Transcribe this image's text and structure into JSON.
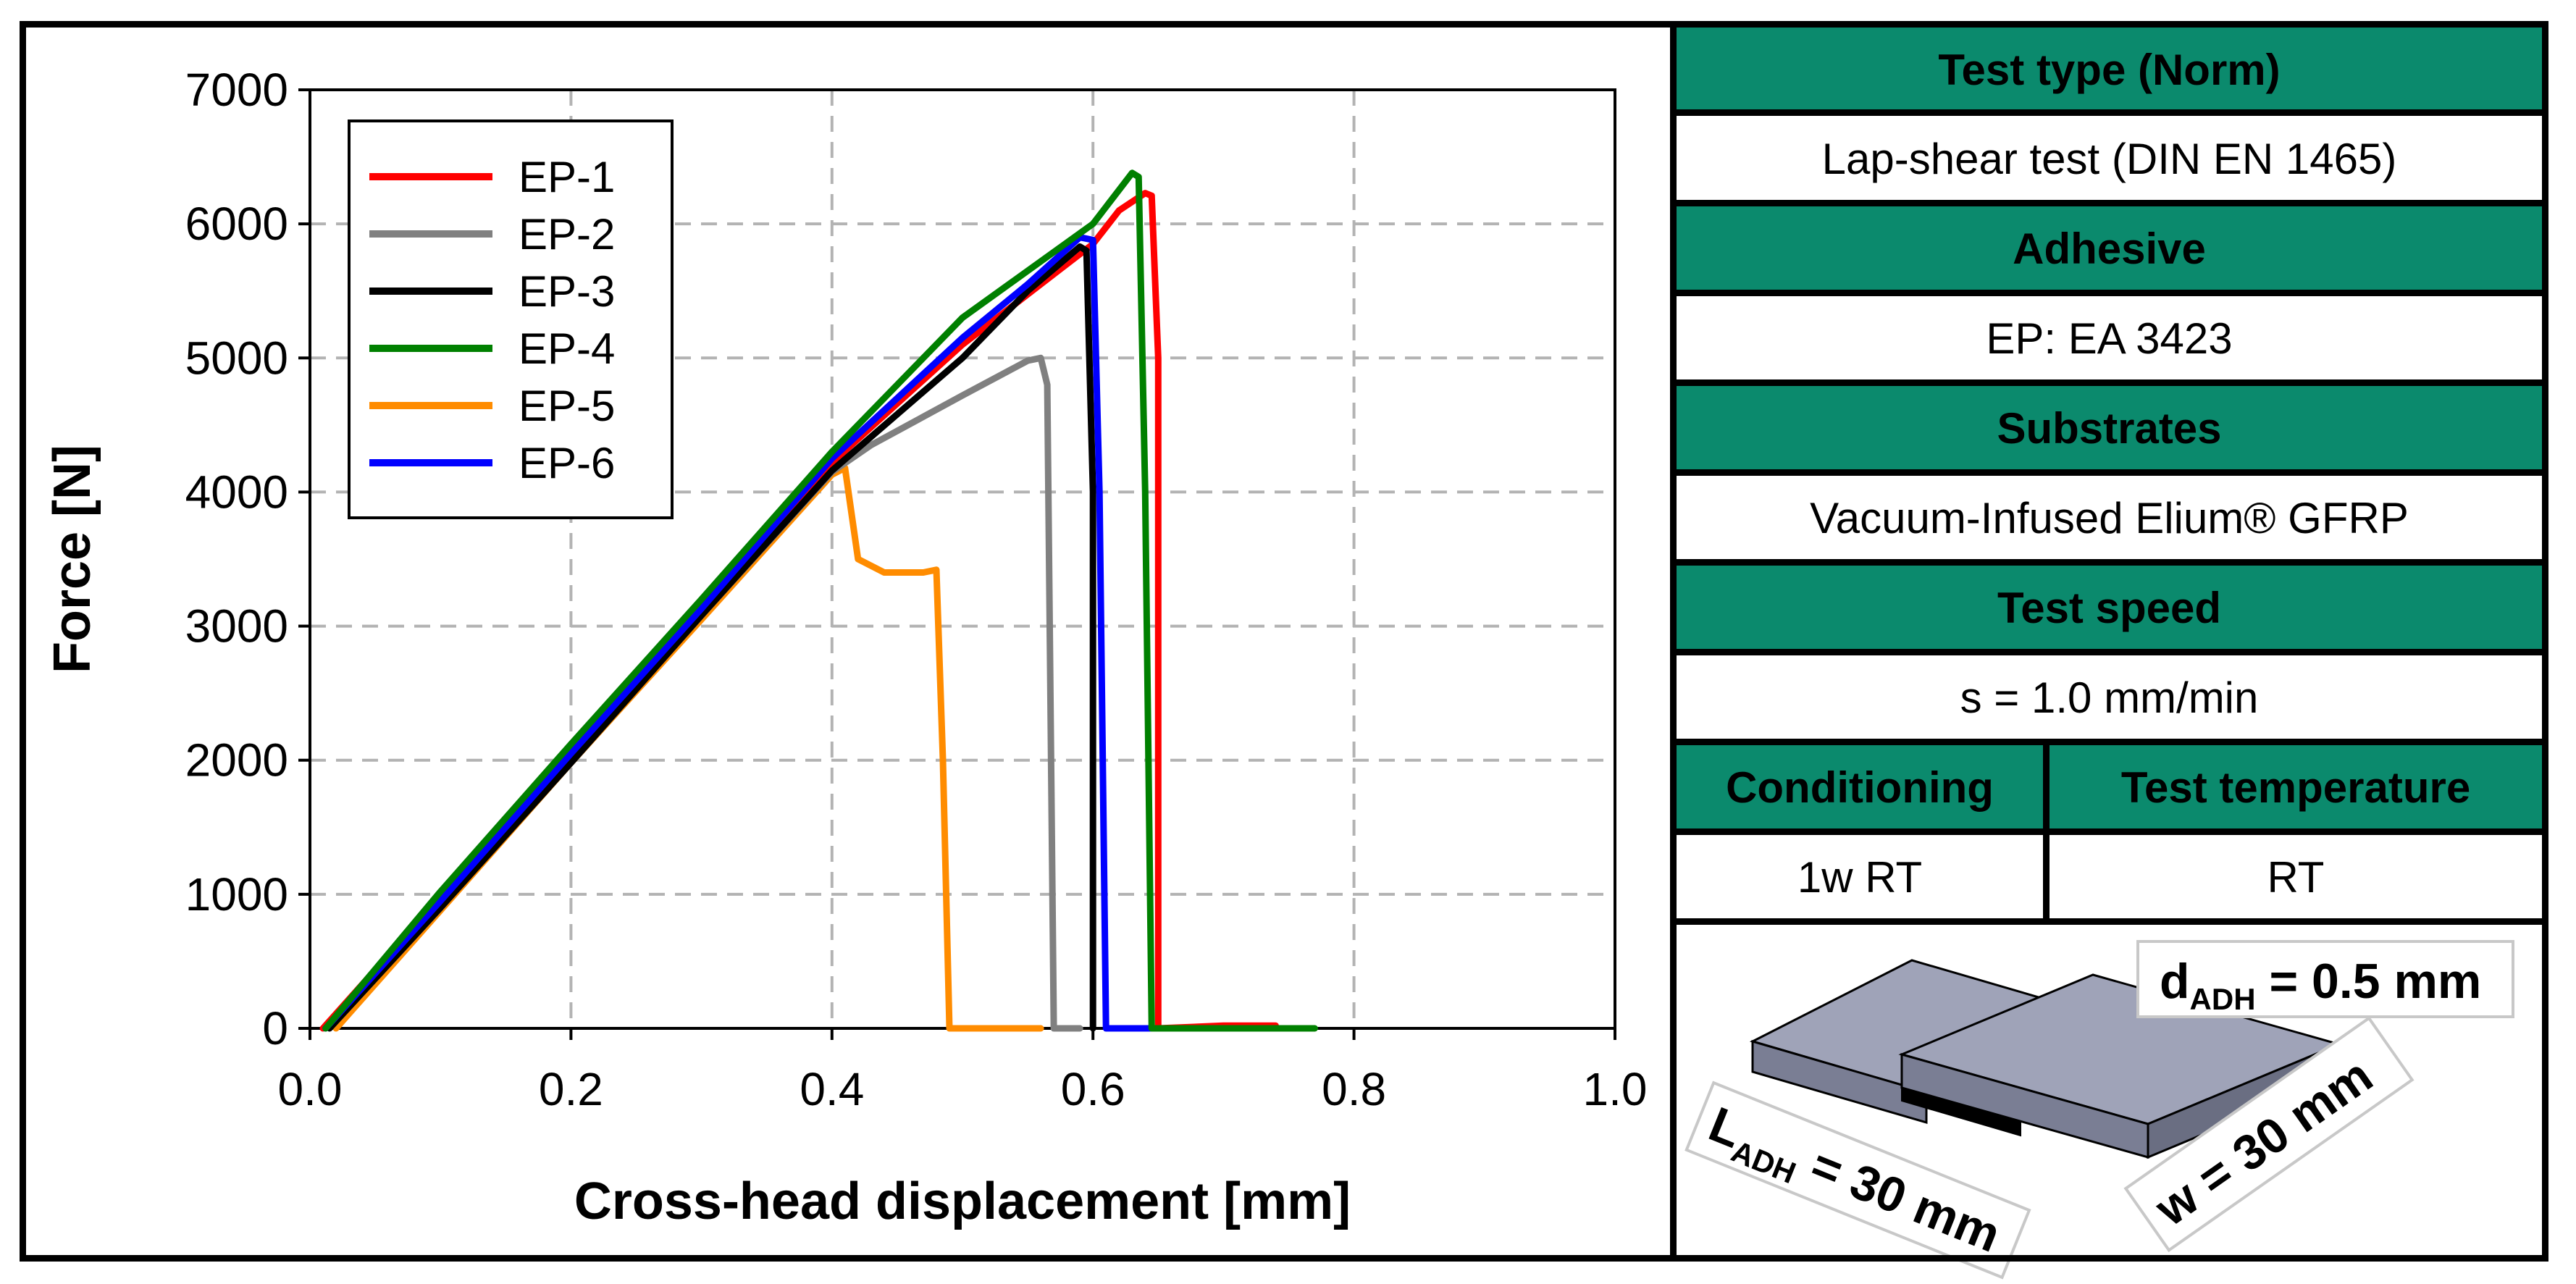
{
  "chart_data": {
    "type": "line",
    "xlabel": "Cross-head displacement [mm]",
    "ylabel": "Force [N]",
    "xlim": [
      0.0,
      1.0
    ],
    "ylim": [
      0,
      7000
    ],
    "x_ticks": [
      "0.0",
      "0.2",
      "0.4",
      "0.6",
      "0.8",
      "1.0"
    ],
    "y_ticks": [
      "0",
      "1000",
      "2000",
      "3000",
      "4000",
      "5000",
      "6000",
      "7000"
    ],
    "grid": true,
    "legend_position": "top-left",
    "series": [
      {
        "name": "EP-1",
        "color": "#ff0000",
        "x": [
          0.01,
          0.1,
          0.2,
          0.3,
          0.4,
          0.5,
          0.6,
          0.62,
          0.64,
          0.645,
          0.65,
          0.65,
          0.7,
          0.74
        ],
        "y": [
          0,
          980,
          2050,
          3120,
          4220,
          5100,
          5850,
          6100,
          6230,
          6210,
          5000,
          0,
          20,
          20
        ]
      },
      {
        "name": "EP-2",
        "color": "#808080",
        "x": [
          0.015,
          0.1,
          0.2,
          0.3,
          0.4,
          0.43,
          0.5,
          0.55,
          0.56,
          0.565,
          0.57,
          0.59
        ],
        "y": [
          0,
          900,
          2000,
          3080,
          4150,
          4350,
          4720,
          4980,
          5000,
          4800,
          0,
          0
        ]
      },
      {
        "name": "EP-3",
        "color": "#000000",
        "x": [
          0.015,
          0.1,
          0.2,
          0.3,
          0.4,
          0.5,
          0.55,
          0.59,
          0.595,
          0.6,
          0.6
        ],
        "y": [
          0,
          900,
          1980,
          3080,
          4160,
          5000,
          5500,
          5830,
          5800,
          4000,
          0
        ]
      },
      {
        "name": "EP-4",
        "color": "#008000",
        "x": [
          0.012,
          0.1,
          0.2,
          0.3,
          0.4,
          0.5,
          0.6,
          0.63,
          0.635,
          0.64,
          0.645,
          0.7,
          0.77
        ],
        "y": [
          0,
          1020,
          2120,
          3200,
          4300,
          5300,
          6000,
          6380,
          6350,
          4000,
          0,
          0,
          0
        ]
      },
      {
        "name": "EP-5",
        "color": "#ff8c00",
        "x": [
          0.02,
          0.1,
          0.2,
          0.3,
          0.4,
          0.41,
          0.42,
          0.44,
          0.47,
          0.48,
          0.485,
          0.49,
          0.5,
          0.56
        ],
        "y": [
          0,
          880,
          1980,
          3050,
          4130,
          4180,
          3500,
          3400,
          3400,
          3420,
          2000,
          0,
          0,
          0
        ]
      },
      {
        "name": "EP-6",
        "color": "#0000ff",
        "x": [
          0.012,
          0.1,
          0.2,
          0.3,
          0.4,
          0.5,
          0.55,
          0.59,
          0.6,
          0.605,
          0.61,
          0.65,
          0.685
        ],
        "y": [
          0,
          950,
          2050,
          3130,
          4250,
          5150,
          5550,
          5900,
          5880,
          4000,
          0,
          0,
          0
        ]
      }
    ]
  },
  "info_table": {
    "test_type_label": "Test type (Norm)",
    "test_type_value": "Lap-shear test (DIN EN 1465)",
    "adhesive_label": "Adhesive",
    "adhesive_value": "EP: EA 3423",
    "substrates_label": "Substrates",
    "substrates_value": "Vacuum-Infused Elium® GFRP",
    "test_speed_label": "Test speed",
    "test_speed_value": "s = 1.0 mm/min",
    "conditioning_label": "Conditioning",
    "conditioning_value": "1w RT",
    "test_temperature_label": "Test temperature",
    "test_temperature_value": "RT"
  },
  "specimen": {
    "thickness_main": "d",
    "thickness_sub": "ADH",
    "thickness_rest": " = 0.5 mm",
    "length_main": "L",
    "length_sub": "ADH",
    "length_rest": " = 30 mm",
    "width_label": "w = 30 mm",
    "substrate_color": "#9fa3b8",
    "adhesive_color": "#000000"
  }
}
